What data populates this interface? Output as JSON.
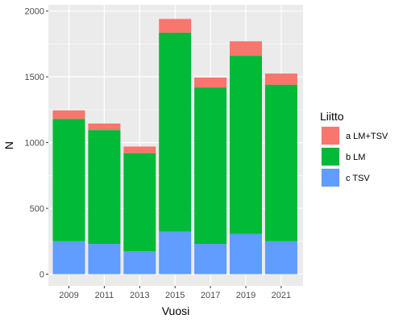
{
  "chart_data": {
    "type": "bar",
    "stacked": true,
    "categories": [
      "2009",
      "2011",
      "2013",
      "2015",
      "2017",
      "2019",
      "2021"
    ],
    "series": [
      {
        "name": "c TSV",
        "color": "#619CFF",
        "values": [
          250,
          230,
          175,
          325,
          230,
          305,
          250
        ]
      },
      {
        "name": "b LM",
        "color": "#00BA38",
        "values": [
          930,
          865,
          745,
          1510,
          1190,
          1355,
          1190
        ]
      },
      {
        "name": "a LM+TSV",
        "color": "#F8766D",
        "values": [
          65,
          50,
          50,
          105,
          75,
          110,
          85
        ]
      }
    ],
    "xlabel": "Vuosi",
    "ylabel": "N",
    "ylim": [
      0,
      2000
    ],
    "yticks": [
      "0",
      "500",
      "1000",
      "1500",
      "2000"
    ],
    "grid": true,
    "legend": {
      "title": "Liitto",
      "position": "right",
      "entries": [
        {
          "label": "a LM+TSV",
          "color": "#F8766D"
        },
        {
          "label": "b LM",
          "color": "#00BA38"
        },
        {
          "label": "c TSV",
          "color": "#619CFF"
        }
      ]
    }
  }
}
